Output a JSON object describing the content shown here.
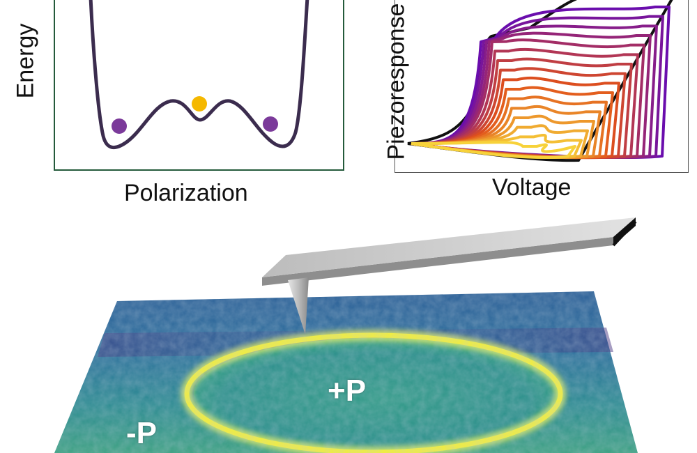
{
  "energy_plot": {
    "ylabel": "Energy",
    "xlabel": "Polarization",
    "colors": {
      "curve": "#3b2c4e",
      "stable_state": "#7b3a9a",
      "unstable_state": "#f5b800",
      "frame": "#245a3b"
    }
  },
  "switching_plot": {
    "ylabel": "Piezoresponse",
    "xlabel": "Voltage",
    "colors": {
      "loop_start": "#6a0dad",
      "loop_mid": "#e0501b",
      "loop_end": "#f7d23a"
    }
  },
  "afm_scan": {
    "inner_domain_label": "+P",
    "outer_domain_label": "-P",
    "colors": {
      "surface": "#2a7a9a",
      "domain_wall": "#f2ee3a",
      "tip": "#bdbdbd"
    }
  }
}
